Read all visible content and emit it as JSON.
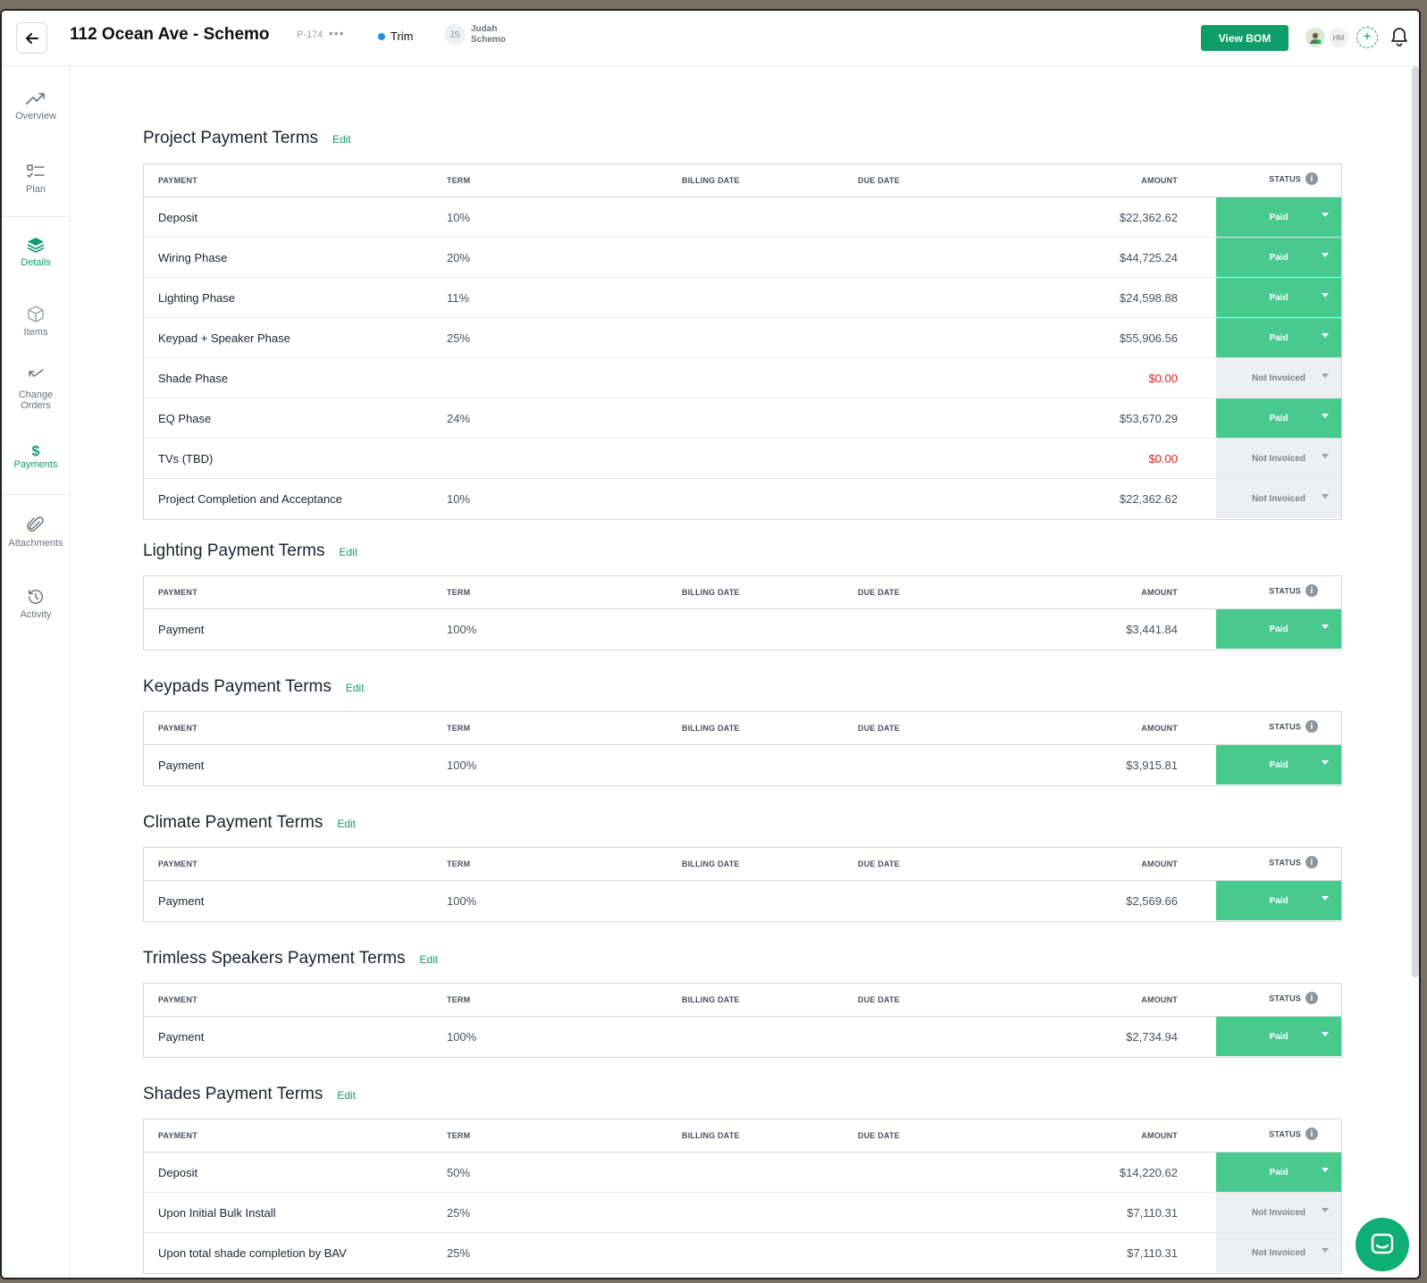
{
  "header": {
    "title": "112 Ocean Ave - Schemo",
    "project_code": "P-174",
    "more": "•••",
    "phase": "Trim",
    "user_initials": "JS",
    "user_first": "Judah",
    "user_last": "Schemo",
    "view_bom": "View BOM",
    "team_initials": "HM",
    "add_member": "+"
  },
  "sidebar": {
    "overview": "Overview",
    "plan": "Plan",
    "details": "Details",
    "items": "Items",
    "change_orders_1": "Change",
    "change_orders_2": "Orders",
    "payments_symbol": "$",
    "payments": "Payments",
    "attachments": "Attachments",
    "activity": "Activity"
  },
  "columns": {
    "payment": "PAYMENT",
    "term": "TERM",
    "billing_date": "BILLING DATE",
    "due_date": "DUE DATE",
    "amount": "AMOUNT",
    "status": "STATUS",
    "info": "i"
  },
  "edit_label": "Edit",
  "sections": [
    {
      "title": "Project Payment Terms",
      "rows": [
        {
          "payment": "Deposit",
          "term": "10%",
          "amount": "$22,362.62",
          "status": "Paid"
        },
        {
          "payment": "Wiring Phase",
          "term": "20%",
          "amount": "$44,725.24",
          "status": "Paid"
        },
        {
          "payment": "Lighting Phase",
          "term": "11%",
          "amount": "$24,598.88",
          "status": "Paid"
        },
        {
          "payment": "Keypad + Speaker Phase",
          "term": "25%",
          "amount": "$55,906.56",
          "status": "Paid"
        },
        {
          "payment": "Shade Phase",
          "term": "",
          "amount": "$0.00",
          "status": "Not Invoiced"
        },
        {
          "payment": "EQ Phase",
          "term": "24%",
          "amount": "$53,670.29",
          "status": "Paid"
        },
        {
          "payment": "TVs (TBD)",
          "term": "",
          "amount": "$0.00",
          "status": "Not Invoiced"
        },
        {
          "payment": "Project Completion and Acceptance",
          "term": "10%",
          "amount": "$22,362.62",
          "status": "Not Invoiced"
        }
      ]
    },
    {
      "title": "Lighting Payment Terms",
      "rows": [
        {
          "payment": "Payment",
          "term": "100%",
          "amount": "$3,441.84",
          "status": "Paid"
        }
      ]
    },
    {
      "title": "Keypads Payment Terms",
      "rows": [
        {
          "payment": "Payment",
          "term": "100%",
          "amount": "$3,915.81",
          "status": "Paid"
        }
      ]
    },
    {
      "title": "Climate Payment Terms",
      "rows": [
        {
          "payment": "Payment",
          "term": "100%",
          "amount": "$2,569.66",
          "status": "Paid"
        }
      ]
    },
    {
      "title": "Trimless Speakers Payment Terms",
      "rows": [
        {
          "payment": "Payment",
          "term": "100%",
          "amount": "$2,734.94",
          "status": "Paid"
        }
      ]
    },
    {
      "title": "Shades Payment Terms",
      "rows": [
        {
          "payment": "Deposit",
          "term": "50%",
          "amount": "$14,220.62",
          "status": "Paid"
        },
        {
          "payment": "Upon Initial Bulk Install",
          "term": "25%",
          "amount": "$7,110.31",
          "status": "Not Invoiced"
        },
        {
          "payment": "Upon total shade completion by BAV",
          "term": "25%",
          "amount": "$7,110.31",
          "status": "Not Invoiced"
        }
      ]
    }
  ],
  "colors": {
    "accent": "#0f9d6a",
    "paid": "#48c98e",
    "not_invoiced": "#eeeff1",
    "zero_amount": "#e0201b"
  }
}
